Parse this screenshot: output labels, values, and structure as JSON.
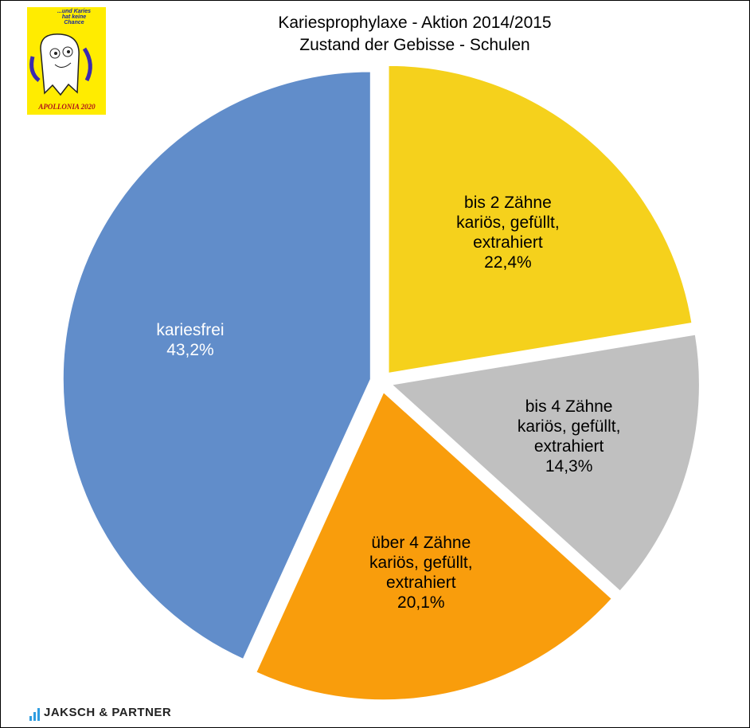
{
  "chart_data": {
    "type": "pie",
    "title": "Kariesprophylaxe - Aktion 2014/2015",
    "subtitle": "Zustand der Gebisse - Schulen",
    "categories": [
      "bis 2 Zähne\nkariös, gefüllt,\nextrahiert",
      "bis 4 Zähne\nkariös, gefüllt,\nextrahiert",
      "über 4 Zähne\nkariös, gefüllt,\nextrahiert",
      "kariesfrei"
    ],
    "values": [
      22.4,
      14.3,
      20.1,
      43.2
    ],
    "value_labels": [
      "22,4%",
      "14,3%",
      "20,1%",
      "43,2%"
    ],
    "colors": [
      "#f5d11c",
      "#c0c0c0",
      "#f99d0c",
      "#618dca"
    ],
    "label_colors": [
      "#000000",
      "#000000",
      "#000000",
      "#ffffff"
    ]
  },
  "logo": {
    "slogan": "...und Karies\nhat keine\nChance",
    "name": "APOLLONIA 2020"
  },
  "footer": {
    "brand": "JAKSCH & PARTNER"
  }
}
